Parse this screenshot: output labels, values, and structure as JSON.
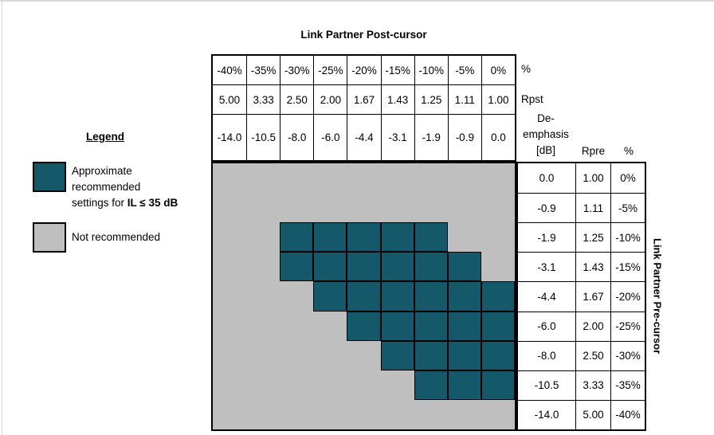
{
  "title": "Link Partner Post-cursor",
  "side_label": "Link Partner Pre-cursor",
  "colors": {
    "recommended": "#14586a",
    "not_recommended": "#bfbfbf",
    "table_border": "#000000"
  },
  "top_table": {
    "rows": [
      [
        "-40%",
        "-35%",
        "-30%",
        "-25%",
        "-20%",
        "-15%",
        "-10%",
        "-5%",
        "0%"
      ],
      [
        "5.00",
        "3.33",
        "2.50",
        "2.00",
        "1.67",
        "1.43",
        "1.25",
        "1.11",
        "1.00"
      ],
      [
        "-14.0",
        "-10.5",
        "-8.0",
        "-6.0",
        "-4.4",
        "-3.1",
        "-1.9",
        "-0.9",
        "0.0"
      ]
    ],
    "percent_label": "%",
    "rpst_label": "Rpst"
  },
  "right_table": {
    "header": {
      "deemphasis_lines": [
        "De-",
        "emphasis",
        "[dB]"
      ],
      "rpre": "Rpre",
      "percent": "%"
    },
    "rows": [
      [
        "0.0",
        "1.00",
        "0%"
      ],
      [
        "-0.9",
        "1.11",
        "-5%"
      ],
      [
        "-1.9",
        "1.25",
        "-10%"
      ],
      [
        "-3.1",
        "1.43",
        "-15%"
      ],
      [
        "-4.4",
        "1.67",
        "-20%"
      ],
      [
        "-6.0",
        "2.00",
        "-25%"
      ],
      [
        "-8.0",
        "2.50",
        "-30%"
      ],
      [
        "-10.5",
        "3.33",
        "-35%"
      ],
      [
        "-14.0",
        "5.00",
        "-40%"
      ]
    ]
  },
  "legend": {
    "title": "Legend",
    "items": [
      {
        "lines": [
          "Approximate",
          "recommended"
        ],
        "line3_regular": "settings for ",
        "line3_bold": "IL ≤ 35 dB"
      },
      {
        "label": "Not recommended"
      }
    ]
  },
  "chart_data": {
    "type": "heatmap",
    "title": "Link Partner Post-cursor",
    "xlabel": "Link Partner Post-cursor",
    "ylabel": "Link Partner Pre-cursor",
    "x_axis": {
      "percent": [
        "-40%",
        "-35%",
        "-30%",
        "-25%",
        "-20%",
        "-15%",
        "-10%",
        "-5%",
        "0%"
      ],
      "rpst": [
        5.0,
        3.33,
        2.5,
        2.0,
        1.67,
        1.43,
        1.25,
        1.11,
        1.0
      ],
      "de_emphasis_db": [
        -14.0,
        -10.5,
        -8.0,
        -6.0,
        -4.4,
        -3.1,
        -1.9,
        -0.9,
        0.0
      ]
    },
    "y_axis": {
      "de_emphasis_db": [
        0.0,
        -0.9,
        -1.9,
        -3.1,
        -4.4,
        -6.0,
        -8.0,
        -10.5,
        -14.0
      ],
      "rpre": [
        1.0,
        1.11,
        1.25,
        1.43,
        1.67,
        2.0,
        2.5,
        3.33,
        5.0
      ],
      "percent": [
        "0%",
        "-5%",
        "-10%",
        "-15%",
        "-20%",
        "-25%",
        "-30%",
        "-35%",
        "-40%"
      ]
    },
    "recommended_matrix": [
      [
        0,
        0,
        0,
        0,
        0,
        0,
        0,
        0,
        0
      ],
      [
        0,
        0,
        0,
        0,
        0,
        0,
        0,
        0,
        0
      ],
      [
        0,
        0,
        1,
        1,
        1,
        1,
        1,
        0,
        0
      ],
      [
        0,
        0,
        1,
        1,
        1,
        1,
        1,
        1,
        0
      ],
      [
        0,
        0,
        0,
        1,
        1,
        1,
        1,
        1,
        1
      ],
      [
        0,
        0,
        0,
        0,
        1,
        1,
        1,
        1,
        1
      ],
      [
        0,
        0,
        0,
        0,
        0,
        1,
        1,
        1,
        1
      ],
      [
        0,
        0,
        0,
        0,
        0,
        0,
        1,
        1,
        1
      ],
      [
        0,
        0,
        0,
        0,
        0,
        0,
        0,
        0,
        0
      ]
    ],
    "legend_entries": [
      "Approximate recommended settings for IL ≤ 35 dB",
      "Not recommended"
    ]
  }
}
